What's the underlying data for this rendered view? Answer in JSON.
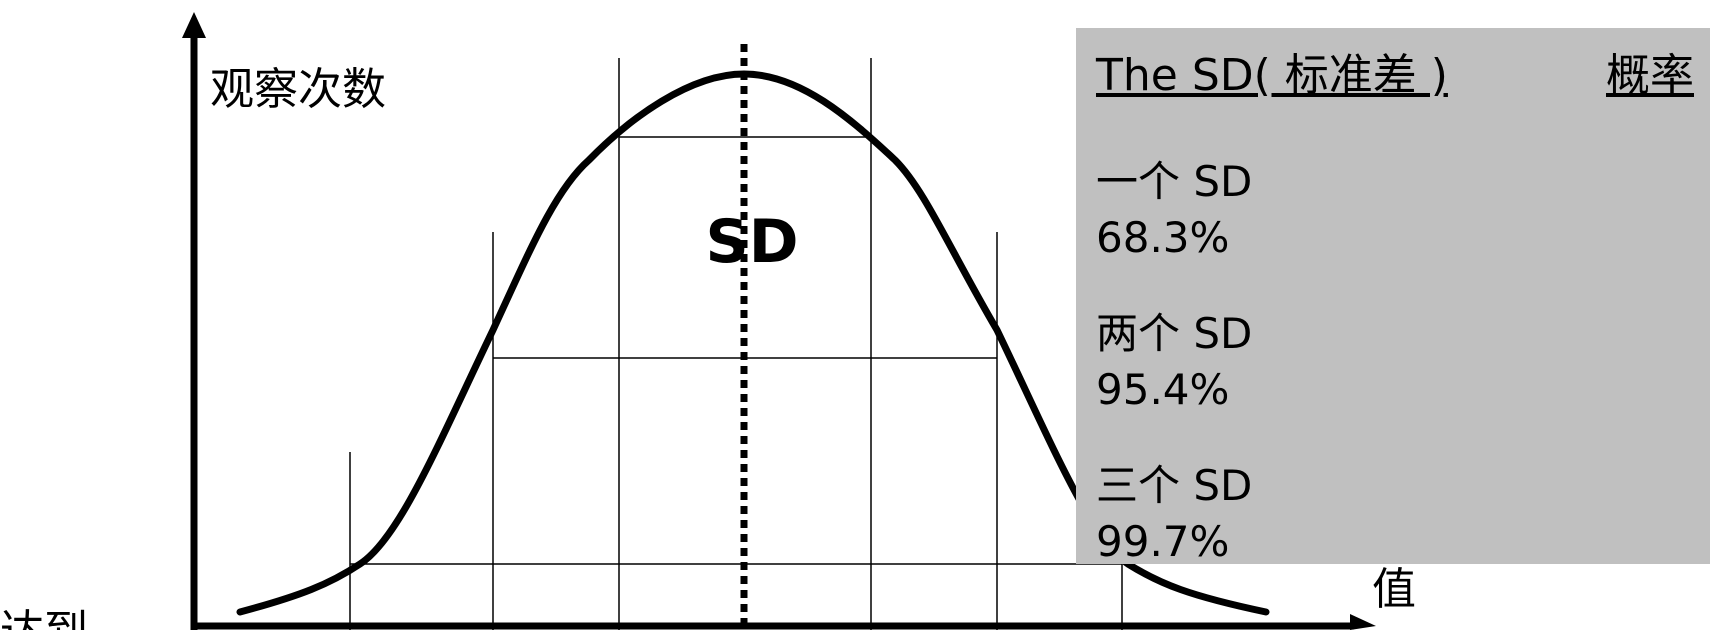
{
  "diagram": {
    "y_axis_label": "观察次数",
    "x_axis_label": "值",
    "center_label": "SD",
    "partial_caption": "达到"
  },
  "legend": {
    "header_left": "The SD( 标准差 )",
    "header_right": "概率",
    "rows": [
      {
        "name": "一个 SD",
        "value": "68.3%"
      },
      {
        "name": "两个 SD",
        "value": "95.4%"
      },
      {
        "name": "三个 SD",
        "value": "99.7%"
      }
    ]
  },
  "colors": {
    "legend_background": "#c0c0c0",
    "ink": "#000000"
  }
}
